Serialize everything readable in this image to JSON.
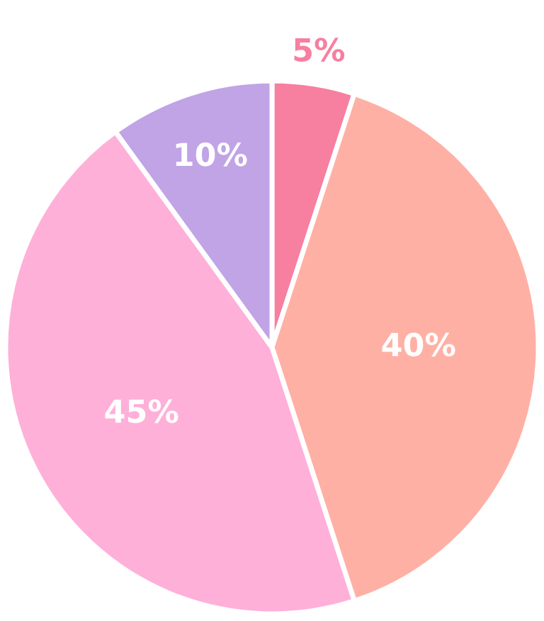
{
  "chart_data": {
    "type": "pie",
    "categories": [
      null,
      null,
      null,
      null
    ],
    "values": [
      5,
      40,
      45,
      10
    ],
    "colors": [
      "#f77fa0",
      "#ffb0a5",
      "#ffb0d8",
      "#c0a4e6"
    ],
    "value_labels": [
      "5%",
      "40%",
      "45%",
      "10%"
    ]
  }
}
